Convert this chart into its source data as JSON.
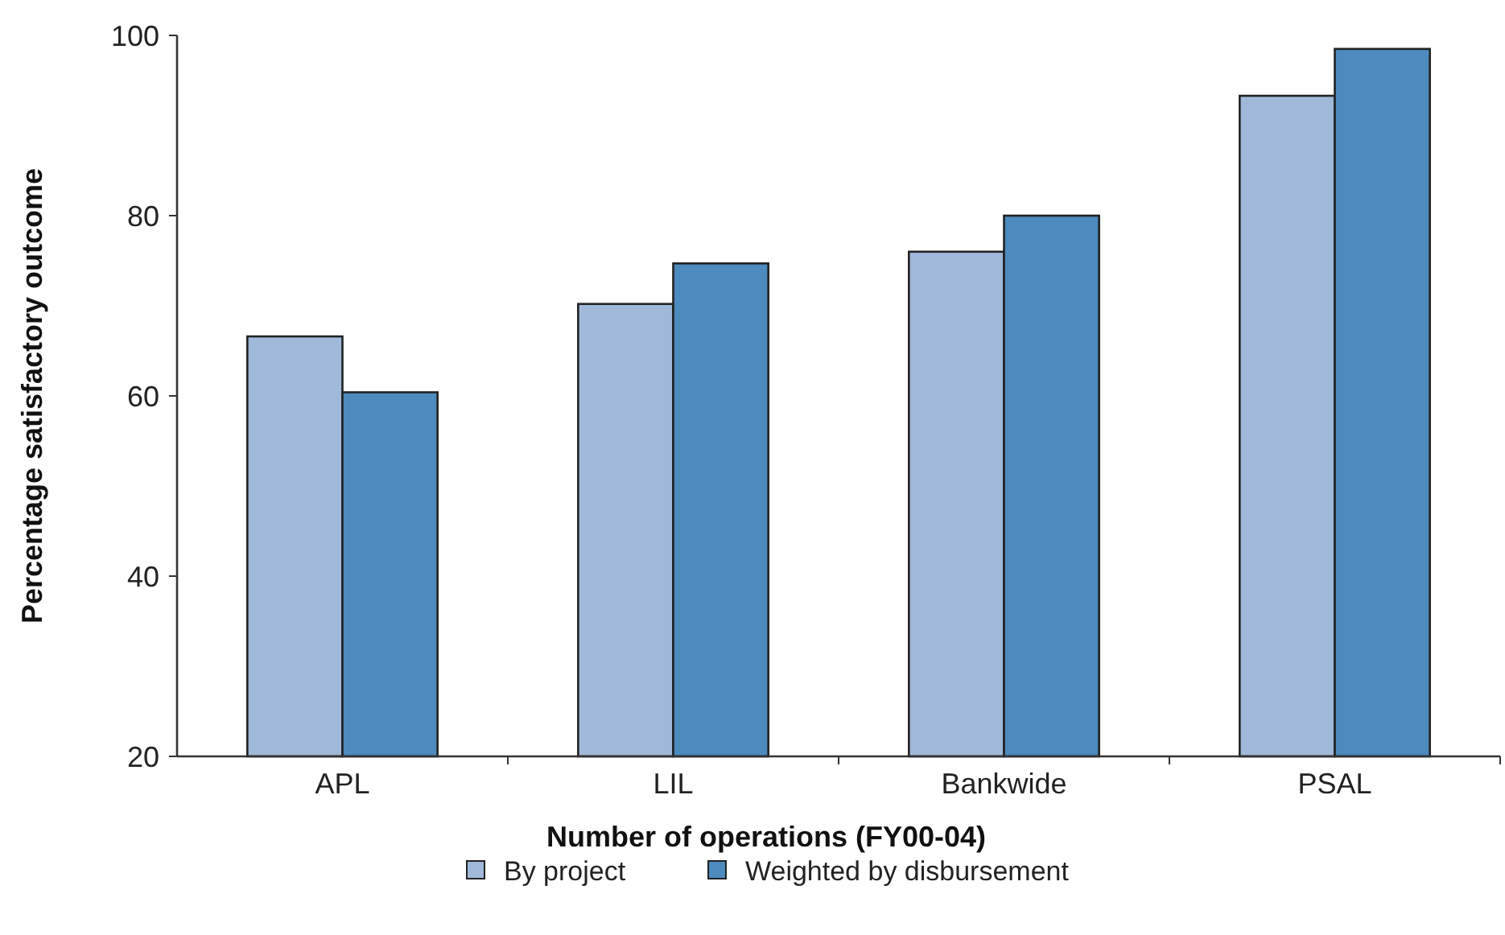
{
  "chart_data": {
    "type": "bar",
    "xlabel": "Number of operations (FY00-04)",
    "ylabel": "Percentage satisfactory outcome",
    "categories": [
      "APL",
      "LIL",
      "Bankwide",
      "PSAL"
    ],
    "series": [
      {
        "name": "By project",
        "color": "#a0b9da",
        "values": [
          66.6,
          70.2,
          76.0,
          93.3
        ]
      },
      {
        "name": "Weighted by disbursement",
        "color": "#4d8abd",
        "values": [
          60.4,
          74.7,
          80.0,
          98.5
        ]
      }
    ],
    "ylim": [
      20,
      100
    ],
    "yticks": [
      20,
      40,
      60,
      80,
      100
    ],
    "grid": false,
    "legend": "bottom"
  }
}
